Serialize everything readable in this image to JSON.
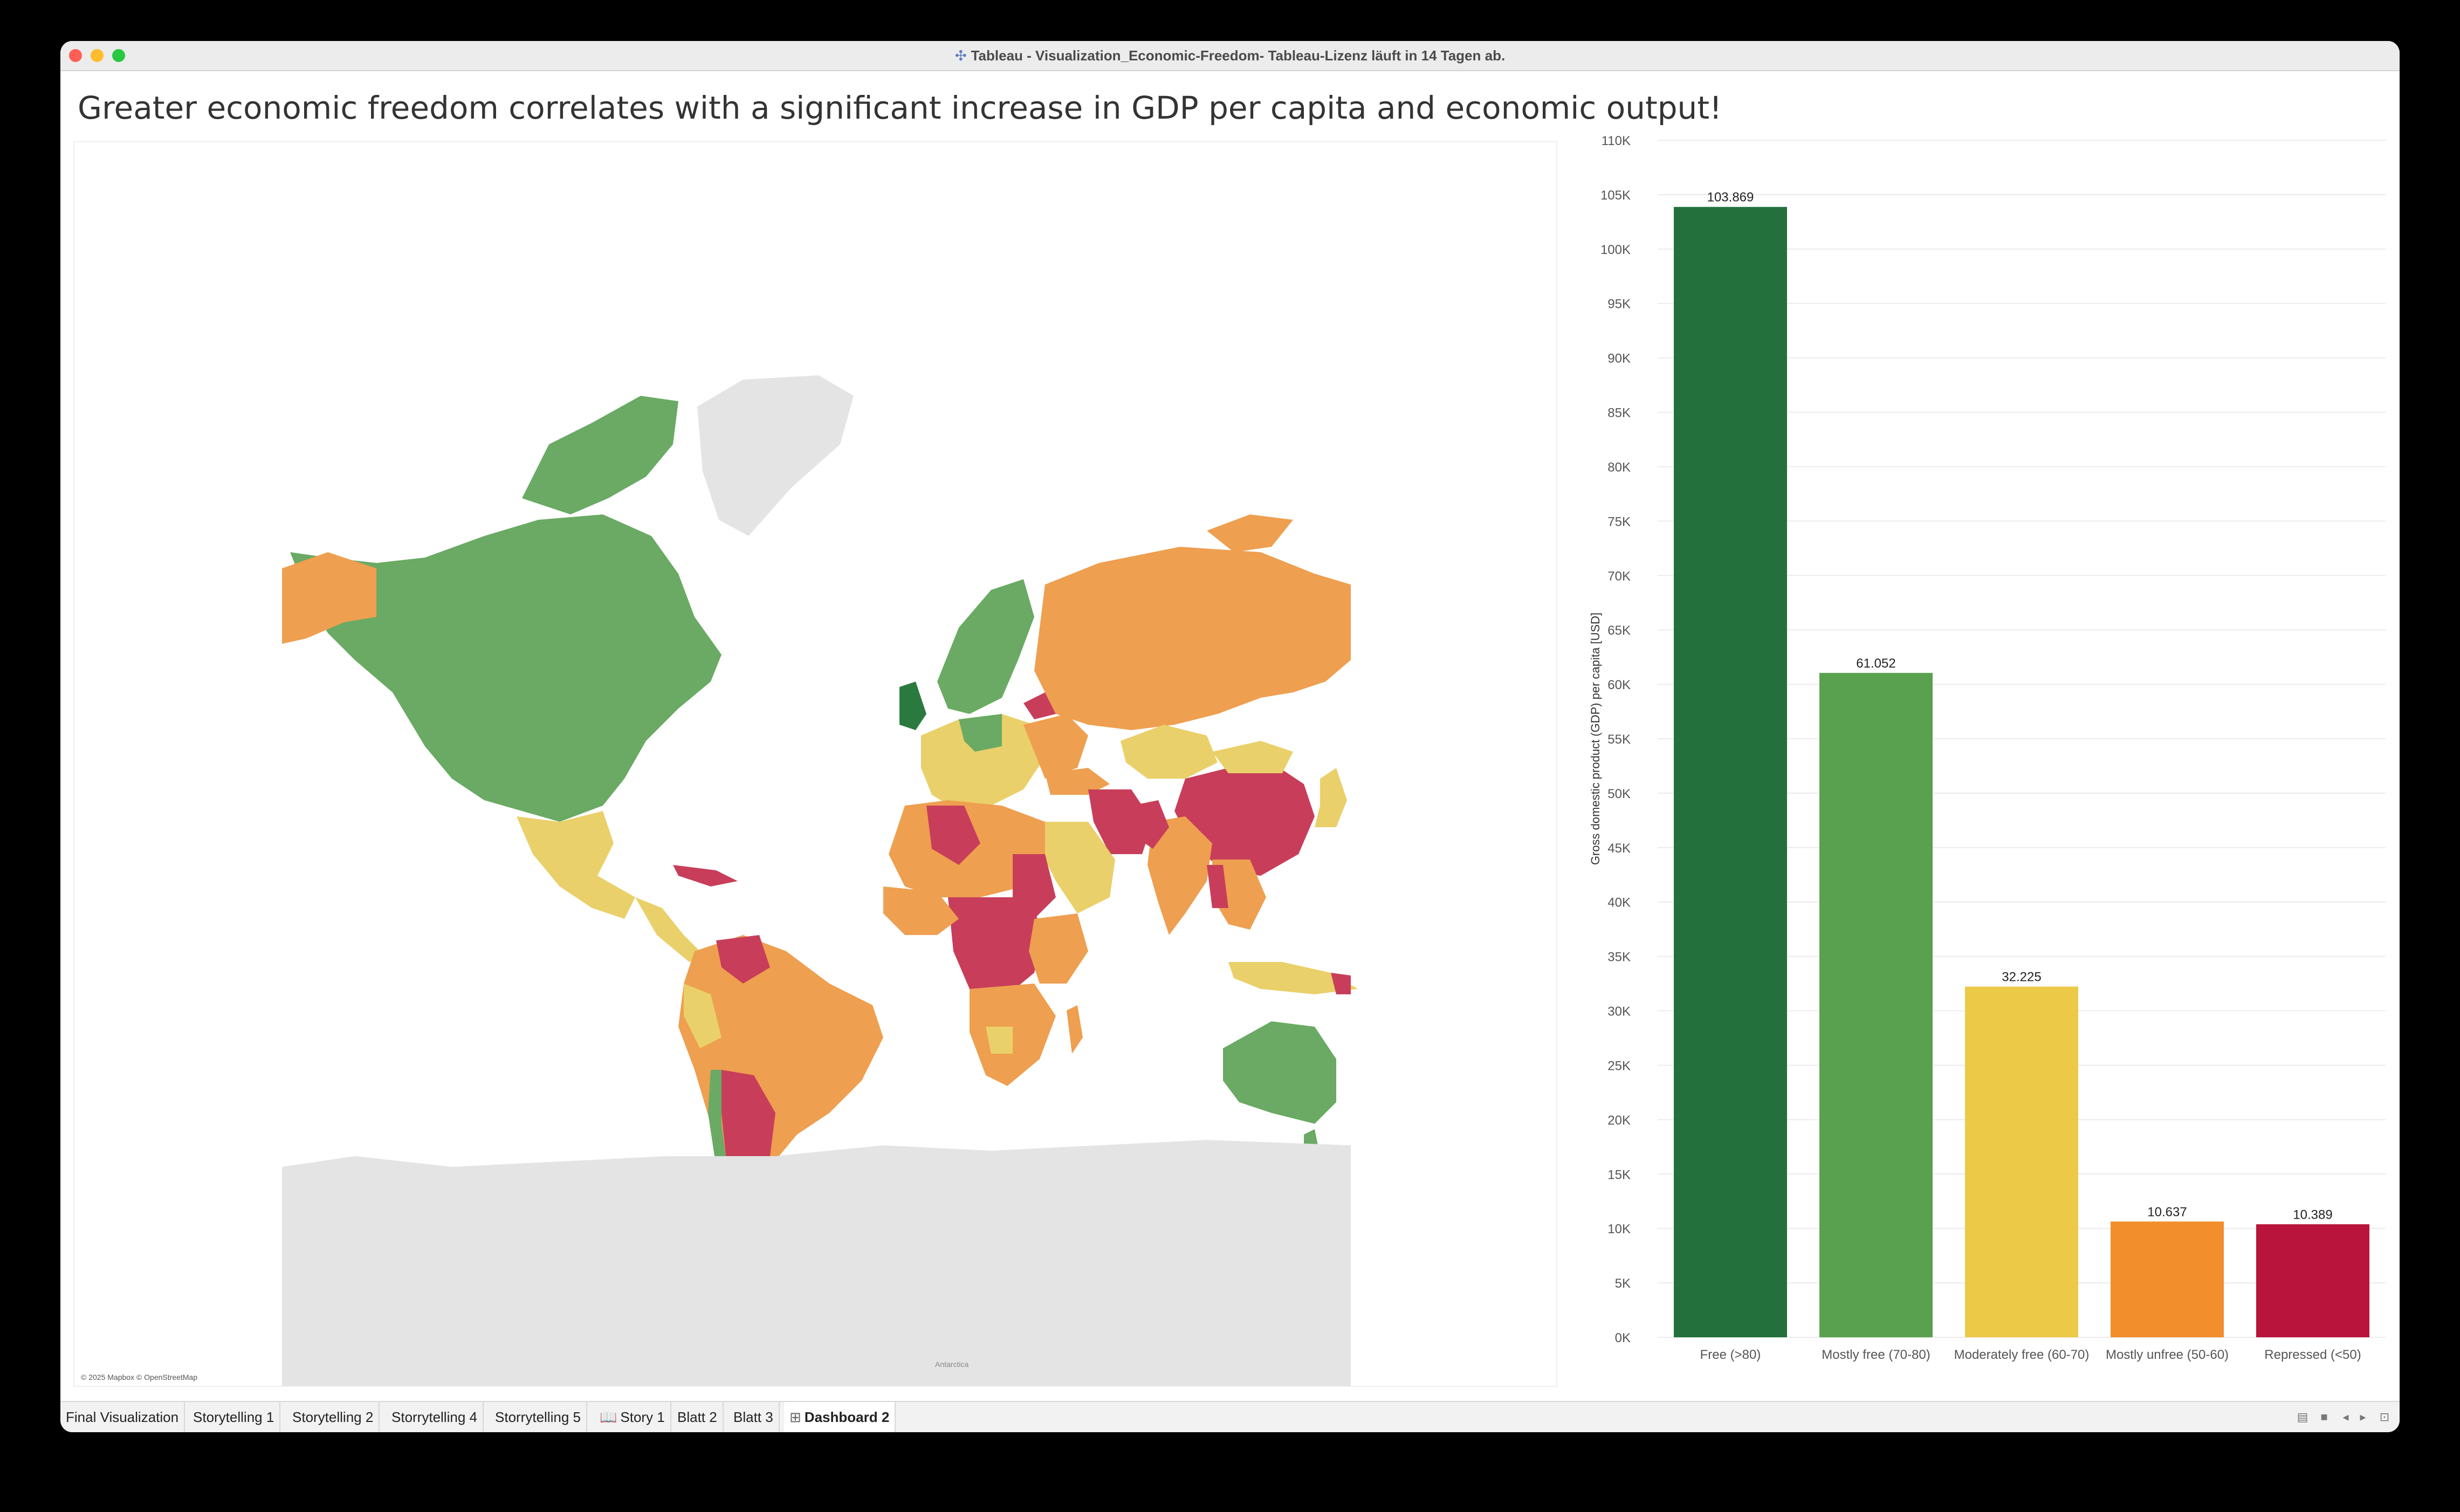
{
  "window": {
    "title": "Tableau - Visualization_Economic-Freedom- Tableau-Lizenz läuft in 14 Tagen ab.",
    "app_icon": "tableau-logo-icon"
  },
  "dashboard": {
    "title": "Greater economic freedom correlates with a significant increase in GDP per capita and economic output!"
  },
  "map": {
    "credit": "© 2025 Mapbox © OpenStreetMap",
    "antarctica_label": "Antarctica",
    "category_colors": {
      "free": "#2a7a3f",
      "mostly_free": "#6aaa64",
      "moderately_free": "#ead06a",
      "mostly_unfree": "#ee9f50",
      "repressed": "#c83e5a",
      "no_data": "#e4e4e4"
    }
  },
  "chart_data": {
    "type": "bar",
    "categories": [
      "Free (>80)",
      "Mostly free (70-80)",
      "Moderately free (60-70)",
      "Mostly unfree (50-60)",
      "Repressed (<50)"
    ],
    "values": [
      103869,
      61052,
      32225,
      10637,
      10389
    ],
    "data_labels": [
      "103.869",
      "61.052",
      "32.225",
      "10.637",
      "10.389"
    ],
    "colors": [
      "#24703c",
      "#59a14f",
      "#edc948",
      "#f28e2b",
      "#b8143c"
    ],
    "ylabel": "Gross domestic product (GDP) per capita [USD]",
    "ylim": [
      0,
      110000
    ],
    "yticks": [
      "0K",
      "5K",
      "10K",
      "15K",
      "20K",
      "25K",
      "30K",
      "35K",
      "40K",
      "45K",
      "50K",
      "55K",
      "60K",
      "65K",
      "70K",
      "75K",
      "80K",
      "85K",
      "90K",
      "95K",
      "100K",
      "105K",
      "110K"
    ],
    "grid": true
  },
  "tabs": [
    {
      "label": "Final Visualization",
      "icon": ""
    },
    {
      "label": "Storytelling 1",
      "icon": ""
    },
    {
      "label": "Storytelling 2",
      "icon": ""
    },
    {
      "label": "Storrytelling 4",
      "icon": ""
    },
    {
      "label": "Storrytelling 5",
      "icon": ""
    },
    {
      "label": "Story 1",
      "icon": "book-icon"
    },
    {
      "label": "Blatt 2",
      "icon": ""
    },
    {
      "label": "Blatt 3",
      "icon": ""
    },
    {
      "label": "Dashboard 2",
      "icon": "grid-icon",
      "active": true
    }
  ],
  "bottom_controls": [
    "filmstrip-icon",
    "tile-icon",
    "prev-sheet-icon",
    "next-sheet-icon",
    "presentation-icon"
  ]
}
